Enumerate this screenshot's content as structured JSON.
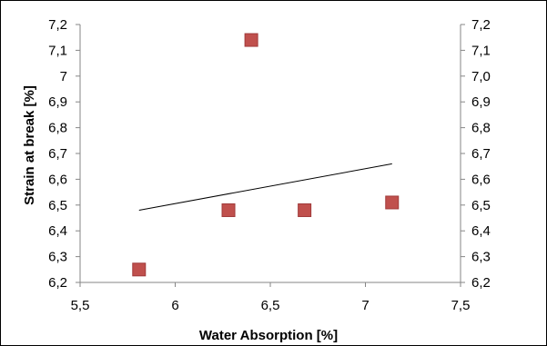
{
  "chart_data": {
    "type": "scatter",
    "title": "",
    "xlabel": "Water Absorption [%]",
    "ylabel": "Strain at break  [%]",
    "xlim": [
      5.5,
      7.5
    ],
    "ylim": [
      6.2,
      7.2
    ],
    "x_ticks": [
      "5,5",
      "6",
      "6,5",
      "7",
      "7,5"
    ],
    "y_ticks_left": [
      "6,2",
      "6,3",
      "6,4",
      "6,5",
      "6,6",
      "6,7",
      "6,8",
      "6,9",
      "7",
      "7,1",
      "7,2"
    ],
    "y_ticks_right": [
      "6,2",
      "6,3",
      "6,4",
      "6,5",
      "6,6",
      "6,7",
      "6,8",
      "6,9",
      "7,0",
      "7,1",
      "7,2"
    ],
    "grid": false,
    "legend": "none",
    "series": [
      {
        "marker": "square",
        "color": "#c0504d",
        "points": [
          {
            "x": 5.81,
            "y": 6.25
          },
          {
            "x": 6.28,
            "y": 6.48
          },
          {
            "x": 6.4,
            "y": 7.14
          },
          {
            "x": 6.68,
            "y": 6.48
          },
          {
            "x": 7.14,
            "y": 6.51
          }
        ]
      }
    ],
    "trendline": {
      "type": "linear",
      "color": "#000000",
      "from": {
        "x": 5.81,
        "y": 6.48
      },
      "to": {
        "x": 7.14,
        "y": 6.66
      }
    }
  }
}
